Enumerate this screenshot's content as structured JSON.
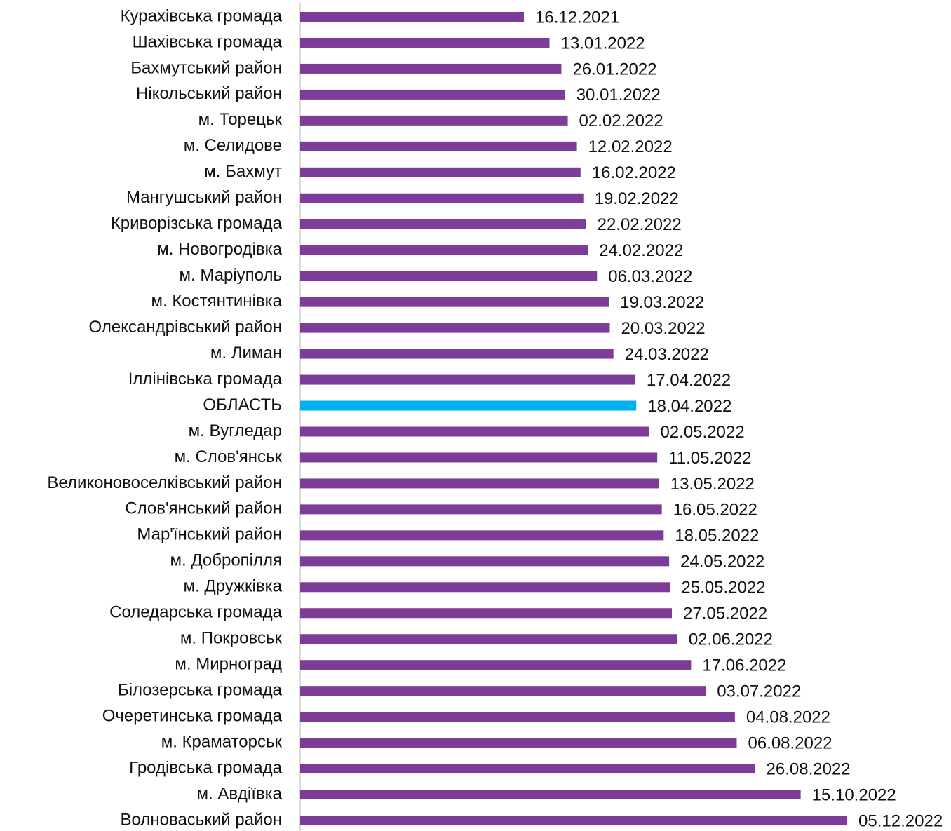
{
  "chart_data": {
    "type": "barh",
    "categories": [
      "Курахівська громада",
      "Шахівська громада",
      "Бахмутський район",
      "Нікольський район",
      "м. Торецьк",
      "м. Селидове",
      "м. Бахмут",
      "Мангушський район",
      "Криворізська громада",
      "м. Новогродівка",
      "м. Маріуполь",
      "м. Костянтинівка",
      "Олександрівський район",
      "м. Лиман",
      "Іллінівська громада",
      "ОБЛАСТЬ",
      "м. Вугледар",
      "м. Слов'янськ",
      "Великоновоселківський район",
      "Слов'янський район",
      "Мар'їнський район",
      "м. Добропілля",
      "м. Дружківка",
      "Соледарська громада",
      "м. Покровськ",
      "м. Мирноград",
      "Білозерська громада",
      "Очеретинська громада",
      "м. Краматорськ",
      "Гродівська громада",
      "м. Авдіївка",
      "Волноваський район"
    ],
    "values": [
      "2021-12-16",
      "2022-01-13",
      "2022-01-26",
      "2022-01-30",
      "2022-02-02",
      "2022-02-12",
      "2022-02-16",
      "2022-02-19",
      "2022-02-22",
      "2022-02-24",
      "2022-03-06",
      "2022-03-19",
      "2022-03-20",
      "2022-03-24",
      "2022-04-17",
      "2022-04-18",
      "2022-05-02",
      "2022-05-11",
      "2022-05-13",
      "2022-05-16",
      "2022-05-18",
      "2022-05-24",
      "2022-05-25",
      "2022-05-27",
      "2022-06-02",
      "2022-06-17",
      "2022-07-03",
      "2022-08-04",
      "2022-08-06",
      "2022-08-26",
      "2022-10-15",
      "2022-12-05"
    ],
    "value_labels": [
      "16.12.2021",
      "13.01.2022",
      "26.01.2022",
      "30.01.2022",
      "02.02.2022",
      "12.02.2022",
      "16.02.2022",
      "19.02.2022",
      "22.02.2022",
      "24.02.2022",
      "06.03.2022",
      "19.03.2022",
      "20.03.2022",
      "24.03.2022",
      "17.04.2022",
      "18.04.2022",
      "02.05.2022",
      "11.05.2022",
      "13.05.2022",
      "16.05.2022",
      "18.05.2022",
      "24.05.2022",
      "25.05.2022",
      "27.05.2022",
      "02.06.2022",
      "17.06.2022",
      "03.07.2022",
      "04.08.2022",
      "06.08.2022",
      "26.08.2022",
      "15.10.2022",
      "05.12.2022"
    ],
    "colors": [
      "#7d3c98",
      "#7d3c98",
      "#7d3c98",
      "#7d3c98",
      "#7d3c98",
      "#7d3c98",
      "#7d3c98",
      "#7d3c98",
      "#7d3c98",
      "#7d3c98",
      "#7d3c98",
      "#7d3c98",
      "#7d3c98",
      "#7d3c98",
      "#7d3c98",
      "#00b0f0",
      "#7d3c98",
      "#7d3c98",
      "#7d3c98",
      "#7d3c98",
      "#7d3c98",
      "#7d3c98",
      "#7d3c98",
      "#7d3c98",
      "#7d3c98",
      "#7d3c98",
      "#7d3c98",
      "#7d3c98",
      "#7d3c98",
      "#7d3c98",
      "#7d3c98",
      "#7d3c98"
    ],
    "xlim": [
      "2021-04-15",
      "2023-03-24"
    ]
  }
}
